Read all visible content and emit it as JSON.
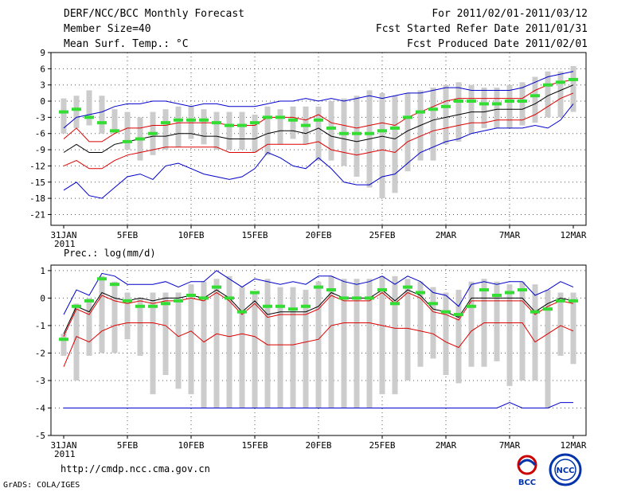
{
  "header": {
    "title": "DERF/NCC/BCC Monthly Forecast",
    "member_size": "Member Size=40",
    "variable_label": "Mean Surf. Temp.: °C",
    "forecast_period": "For 2011/02/01-2011/03/12",
    "refer_date": "Fcst Started Refer Date 2011/01/31",
    "produced_date": "Fcst Produced Date 2011/02/01"
  },
  "footer": {
    "url": "http://cmdp.ncc.cma.gov.cn",
    "grads": "GrADS: COLA/IGES",
    "logo_bcc": "BCC",
    "logo_ncc": "NCC"
  },
  "colors": {
    "box": "#cccccc",
    "median": "#33dd33",
    "mean": "#000000",
    "spread": "#dd0000",
    "extreme": "#0000cc",
    "grid": "#555555"
  },
  "chart_data": [
    {
      "type": "box-plume",
      "title": "Mean Surf. Temp.: °C",
      "ylabel": "°C",
      "ylim": [
        -23,
        9
      ],
      "yticks": [
        -21,
        -18,
        -15,
        -12,
        -9,
        -6,
        -3,
        0,
        3,
        6,
        9
      ],
      "x_day_range": [
        0,
        40
      ],
      "x_tick_days": [
        0,
        5,
        10,
        15,
        20,
        25,
        30,
        35,
        40
      ],
      "x_tick_labels": [
        "31JAN",
        "5FEB",
        "10FEB",
        "15FEB",
        "20FEB",
        "25FEB",
        "2MAR",
        "7MAR",
        "12MAR"
      ],
      "x_year_label": "2011",
      "box_low": [
        -6.0,
        -5.0,
        -4.5,
        -6.0,
        -6.0,
        -9.0,
        -11.0,
        -10.0,
        -9.0,
        -8.5,
        -7.0,
        -8.0,
        -9.0,
        -9.0,
        -9.0,
        -9.5,
        -10.0,
        -8.0,
        -7.0,
        -8.0,
        -11.0,
        -11.0,
        -12.0,
        -14.0,
        -16.0,
        -18.0,
        -17.0,
        -13.0,
        -11.0,
        -11.0,
        -8.0,
        -7.5,
        -6.0,
        -5.0,
        -5.0,
        -5.0,
        -4.5,
        -4.0,
        -3.0,
        -3.0,
        -2.0
      ],
      "box_high": [
        0.5,
        1.0,
        2.0,
        1.0,
        -1.5,
        -2.0,
        -3.0,
        -2.0,
        -1.5,
        -1.0,
        -1.0,
        -1.5,
        -2.0,
        -2.0,
        -2.0,
        -2.5,
        -1.0,
        -1.5,
        -1.0,
        -1.0,
        -1.0,
        0.0,
        0.5,
        1.0,
        2.0,
        1.5,
        1.0,
        1.5,
        2.0,
        2.5,
        3.0,
        3.5,
        3.0,
        2.5,
        2.5,
        3.0,
        3.5,
        4.5,
        5.5,
        5.5,
        6.5
      ],
      "median": [
        -2.0,
        -1.5,
        -3.0,
        -4.0,
        -5.5,
        -7.5,
        -7.0,
        -6.0,
        -4.0,
        -3.5,
        -3.5,
        -3.5,
        -4.0,
        -4.5,
        -4.5,
        -4.0,
        -3.0,
        -3.0,
        -3.5,
        -4.5,
        -3.5,
        -5.0,
        -6.0,
        -6.0,
        -6.0,
        -5.5,
        -5.0,
        -3.0,
        -2.0,
        -1.5,
        -1.0,
        0.0,
        0.0,
        -0.5,
        -0.5,
        0.0,
        0.0,
        1.0,
        3.0,
        3.5,
        4.0
      ],
      "series": [
        {
          "name": "ensemble-mean",
          "role": "mean",
          "values": [
            -9.5,
            -8.0,
            -9.5,
            -9.5,
            -8.0,
            -7.5,
            -7.0,
            -6.5,
            -6.5,
            -6.0,
            -6.0,
            -6.5,
            -6.5,
            -7.0,
            -7.0,
            -7.0,
            -6.0,
            -5.5,
            -5.5,
            -6.0,
            -5.0,
            -6.5,
            -7.0,
            -7.5,
            -7.0,
            -6.5,
            -7.0,
            -5.5,
            -4.5,
            -3.5,
            -3.0,
            -2.5,
            -2.0,
            -2.0,
            -1.5,
            -1.5,
            -1.5,
            -0.5,
            1.0,
            2.0,
            3.0
          ]
        },
        {
          "name": "mean-plus-spread",
          "role": "spread",
          "values": [
            -7.0,
            -5.0,
            -7.5,
            -7.5,
            -6.0,
            -5.0,
            -5.0,
            -4.5,
            -4.5,
            -4.0,
            -4.0,
            -4.0,
            -4.0,
            -4.5,
            -4.5,
            -4.5,
            -3.0,
            -3.0,
            -3.0,
            -3.5,
            -2.5,
            -4.0,
            -4.5,
            -5.0,
            -4.5,
            -4.0,
            -4.5,
            -3.0,
            -2.0,
            -1.0,
            0.0,
            0.5,
            0.5,
            0.5,
            0.5,
            0.5,
            0.5,
            2.0,
            3.0,
            3.5,
            4.0
          ]
        },
        {
          "name": "mean-minus-spread",
          "role": "spread",
          "values": [
            -12.0,
            -11.0,
            -12.5,
            -12.5,
            -11.0,
            -10.0,
            -9.5,
            -9.0,
            -8.5,
            -8.5,
            -8.5,
            -8.5,
            -8.5,
            -9.5,
            -9.5,
            -9.5,
            -8.0,
            -8.0,
            -8.0,
            -8.0,
            -7.5,
            -9.0,
            -9.5,
            -10.0,
            -9.5,
            -9.0,
            -9.5,
            -7.5,
            -6.5,
            -5.5,
            -5.0,
            -4.5,
            -4.0,
            -4.0,
            -3.5,
            -3.5,
            -3.5,
            -2.5,
            -1.0,
            0.5,
            1.5
          ]
        },
        {
          "name": "ensemble-max",
          "role": "extreme",
          "values": [
            -5.0,
            -3.0,
            -2.5,
            -2.0,
            -1.0,
            -0.5,
            -0.5,
            0.0,
            0.0,
            -0.5,
            -1.0,
            -0.5,
            -0.5,
            -1.0,
            -1.0,
            -1.0,
            -0.5,
            0.0,
            0.0,
            0.5,
            0.0,
            0.5,
            0.0,
            0.5,
            1.0,
            0.5,
            1.0,
            1.5,
            1.5,
            2.0,
            2.5,
            2.5,
            2.0,
            2.0,
            2.0,
            2.0,
            2.5,
            3.5,
            4.5,
            5.0,
            5.5
          ]
        },
        {
          "name": "ensemble-min",
          "role": "extreme",
          "values": [
            -16.5,
            -15.0,
            -17.5,
            -18.0,
            -16.0,
            -14.0,
            -13.5,
            -14.5,
            -12.0,
            -11.5,
            -12.5,
            -13.5,
            -14.0,
            -14.5,
            -14.0,
            -12.5,
            -9.5,
            -10.5,
            -12.0,
            -12.5,
            -10.5,
            -12.5,
            -15.0,
            -15.5,
            -15.5,
            -14.0,
            -13.5,
            -11.5,
            -9.5,
            -8.5,
            -7.5,
            -7.0,
            -6.0,
            -5.5,
            -5.0,
            -5.0,
            -5.0,
            -4.5,
            -5.0,
            -3.5,
            -0.5
          ]
        }
      ]
    },
    {
      "type": "box-plume",
      "title": "Prec.: log(mm/d)",
      "ylabel": "log(mm/d)",
      "ylim": [
        -5,
        1.2
      ],
      "yticks": [
        -5,
        -4,
        -3,
        -2,
        -1,
        0,
        1
      ],
      "x_day_range": [
        0,
        40
      ],
      "x_tick_days": [
        0,
        5,
        10,
        15,
        20,
        25,
        30,
        35,
        40
      ],
      "x_tick_labels": [
        "31JAN",
        "5FEB",
        "10FEB",
        "15FEB",
        "20FEB",
        "25FEB",
        "2MAR",
        "7MAR",
        "12MAR"
      ],
      "x_year_label": "2011",
      "box_low": [
        -2.1,
        -3.0,
        -2.1,
        -2.0,
        -2.0,
        -1.5,
        -2.1,
        -3.5,
        -2.8,
        -3.3,
        -3.5,
        -4.0,
        -4.0,
        -4.0,
        -4.0,
        -4.0,
        -4.0,
        -4.0,
        -4.0,
        -4.0,
        -4.0,
        -4.0,
        -4.0,
        -4.0,
        -4.0,
        -3.5,
        -3.5,
        -3.0,
        -2.5,
        -2.2,
        -2.8,
        -3.1,
        -2.5,
        -2.5,
        -2.3,
        -3.2,
        -3.0,
        -3.0,
        -4.0,
        -2.1,
        -2.4
      ],
      "box_high": [
        -1.3,
        -0.2,
        0.0,
        0.8,
        0.6,
        0.2,
        0.0,
        0.2,
        0.2,
        0.2,
        0.5,
        0.6,
        0.7,
        0.8,
        0.4,
        0.2,
        0.7,
        0.4,
        0.4,
        0.3,
        0.6,
        0.8,
        0.7,
        0.7,
        0.7,
        0.8,
        0.8,
        0.7,
        0.6,
        0.4,
        0.2,
        0.3,
        0.6,
        0.7,
        0.6,
        0.5,
        0.6,
        0.5,
        0.3,
        0.2,
        0.2
      ],
      "median": [
        -1.5,
        -0.3,
        -0.1,
        0.7,
        0.5,
        -0.1,
        -0.3,
        -0.3,
        -0.2,
        -0.1,
        0.1,
        0.0,
        0.4,
        0.0,
        -0.5,
        0.2,
        -0.3,
        -0.3,
        -0.4,
        -0.3,
        0.4,
        0.3,
        0.0,
        0.0,
        0.0,
        0.3,
        -0.2,
        0.4,
        0.2,
        -0.2,
        -0.5,
        -0.6,
        -0.3,
        0.3,
        0.1,
        0.2,
        0.3,
        -0.5,
        -0.4,
        -0.1,
        -0.1
      ],
      "series": [
        {
          "name": "ensemble-mean",
          "role": "mean",
          "values": [
            -1.3,
            -0.3,
            -0.5,
            0.2,
            0.0,
            -0.1,
            0.0,
            -0.1,
            0.0,
            0.0,
            0.1,
            0.0,
            0.3,
            0.0,
            -0.5,
            -0.1,
            -0.6,
            -0.5,
            -0.5,
            -0.5,
            -0.3,
            0.2,
            0.0,
            0.0,
            0.0,
            0.3,
            -0.1,
            0.3,
            0.1,
            -0.4,
            -0.5,
            -0.7,
            0.0,
            0.0,
            0.0,
            0.0,
            0.0,
            -0.5,
            -0.2,
            0.0,
            -0.1
          ]
        },
        {
          "name": "mean-plus-spread",
          "role": "spread",
          "values": [
            -1.4,
            -0.4,
            -0.6,
            0.1,
            -0.1,
            -0.2,
            -0.1,
            -0.2,
            -0.1,
            -0.1,
            0.0,
            -0.1,
            0.2,
            -0.1,
            -0.6,
            -0.2,
            -0.7,
            -0.6,
            -0.6,
            -0.6,
            -0.4,
            0.1,
            -0.1,
            -0.1,
            -0.1,
            0.2,
            -0.2,
            0.2,
            0.0,
            -0.5,
            -0.6,
            -0.8,
            -0.1,
            -0.1,
            -0.1,
            -0.1,
            -0.1,
            -0.6,
            -0.3,
            -0.1,
            -0.2
          ]
        },
        {
          "name": "mean-minus-spread",
          "role": "spread",
          "values": [
            -2.5,
            -1.4,
            -1.6,
            -1.2,
            -1.0,
            -0.9,
            -0.9,
            -0.9,
            -1.0,
            -1.4,
            -1.2,
            -1.6,
            -1.3,
            -1.4,
            -1.3,
            -1.4,
            -1.7,
            -1.7,
            -1.7,
            -1.6,
            -1.5,
            -1.0,
            -0.9,
            -0.9,
            -0.9,
            -1.0,
            -1.1,
            -1.1,
            -1.2,
            -1.3,
            -1.6,
            -1.8,
            -1.2,
            -0.9,
            -0.9,
            -0.9,
            -0.9,
            -1.6,
            -1.3,
            -1.0,
            -1.2
          ]
        },
        {
          "name": "ensemble-max",
          "role": "extreme",
          "values": [
            -0.6,
            0.3,
            0.1,
            0.9,
            0.8,
            0.5,
            0.5,
            0.5,
            0.6,
            0.4,
            0.6,
            0.6,
            1.0,
            0.7,
            0.4,
            0.7,
            0.6,
            0.5,
            0.6,
            0.5,
            0.8,
            0.8,
            0.6,
            0.5,
            0.6,
            0.8,
            0.5,
            0.8,
            0.6,
            0.2,
            0.1,
            -0.3,
            0.5,
            0.6,
            0.5,
            0.6,
            0.6,
            0.1,
            0.3,
            0.6,
            0.4
          ]
        },
        {
          "name": "ensemble-min",
          "role": "extreme",
          "values": [
            -4.0,
            -4.0,
            -4.0,
            -4.0,
            -4.0,
            -4.0,
            -4.0,
            -4.0,
            -4.0,
            -4.0,
            -4.0,
            -4.0,
            -4.0,
            -4.0,
            -4.0,
            -4.0,
            -4.0,
            -4.0,
            -4.0,
            -4.0,
            -4.0,
            -4.0,
            -4.0,
            -4.0,
            -4.0,
            -4.0,
            -4.0,
            -4.0,
            -4.0,
            -4.0,
            -4.0,
            -4.0,
            -4.0,
            -4.0,
            -4.0,
            -3.8,
            -4.0,
            -4.0,
            -4.0,
            -3.8,
            -3.8
          ]
        }
      ]
    }
  ]
}
